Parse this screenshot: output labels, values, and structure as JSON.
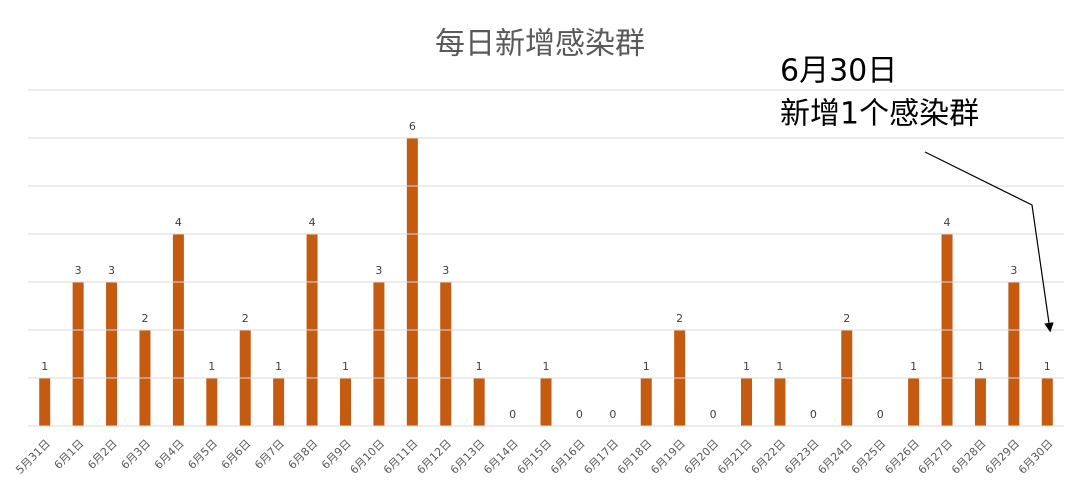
{
  "chart_data": {
    "type": "bar",
    "title": "每日新增感染群",
    "categories": [
      "5月31日",
      "6月1日",
      "6月2日",
      "6月3日",
      "6月4日",
      "6月5日",
      "6月6日",
      "6月7日",
      "6月8日",
      "6月9日",
      "6月10日",
      "6月11日",
      "6月12日",
      "6月13日",
      "6月14日",
      "6月15日",
      "6月16日",
      "6月17日",
      "6月18日",
      "6月19日",
      "6月20日",
      "6月21日",
      "6月22日",
      "6月23日",
      "6月24日",
      "6月25日",
      "6月26日",
      "6月27日",
      "6月28日",
      "6月29日",
      "6月30日"
    ],
    "values": [
      1,
      3,
      3,
      2,
      4,
      1,
      2,
      1,
      4,
      1,
      3,
      6,
      3,
      1,
      0,
      1,
      0,
      0,
      1,
      2,
      0,
      1,
      1,
      0,
      2,
      0,
      1,
      4,
      1,
      3,
      1
    ],
    "color": "#c55a11",
    "ylim": [
      0,
      7
    ],
    "yticks": [
      0,
      1,
      2,
      3,
      4,
      5,
      6,
      7
    ],
    "ytick_labels": false,
    "grid": true,
    "data_labels": true,
    "annotation": [
      "6月30日",
      "新增1个感染群"
    ]
  }
}
